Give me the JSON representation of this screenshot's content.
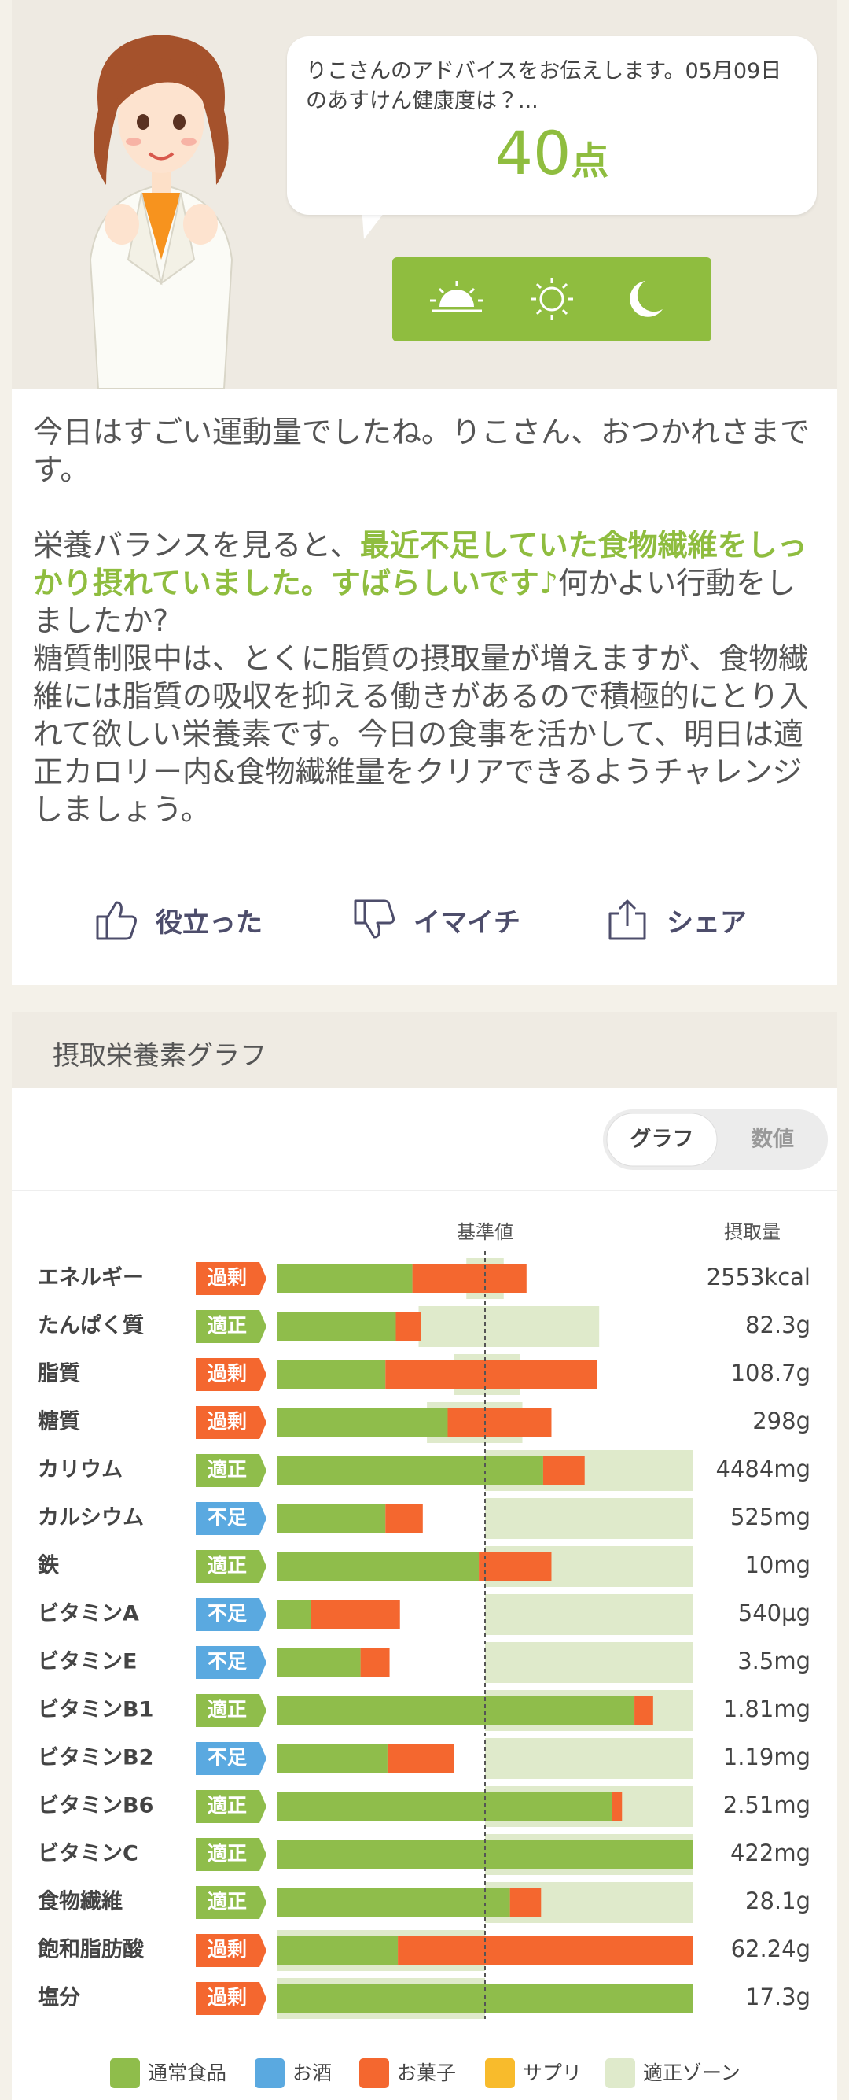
{
  "advice": {
    "bubble_text": "りこさんのアドバイスをお伝えします。05月09日のあすけん健康度は？...",
    "score": 40,
    "score_unit": "点"
  },
  "message": {
    "p1": "今日はすごい運動量でしたね。りこさん、おつかれさまです。",
    "p2": [
      "栄養バランスを見ると、",
      "最近不足していた食物繊維をしっかり摂れていました。すばらしいです♪",
      "何かよい行動をしましたか?"
    ],
    "p3": "糖質制限中は、とくに脂質の摂取量が増えますが、食物繊維には脂質の吸収を抑える働きがあるので積極的にとり入れて欲しい栄養素です。今日の食事を活かして、明日は適正カロリー内&食物繊維量をクリアできるようチャレンジしましょう。"
  },
  "actions": [
    "役立った",
    "イマイチ",
    "シェア"
  ],
  "nutrient_graph": {
    "title": "摂取栄養素グラフ",
    "tabs": [
      "グラフ",
      "数値"
    ],
    "selected_tab": 0,
    "reference_label": "基準値",
    "intake_label": "摂取量",
    "xlim": [
      0,
      200
    ],
    "reference": 100,
    "legend": [
      {
        "name": "通常食品",
        "color": "#8fbd4b"
      },
      {
        "name": "お酒",
        "color": "#5aa9e0"
      },
      {
        "name": "お菓子",
        "color": "#f4672f"
      },
      {
        "name": "サプリ",
        "color": "#f8bb2c"
      },
      {
        "name": "適正ゾーン",
        "color": "#dfeacb"
      }
    ],
    "nutrients": [
      {
        "name": "エネルギー",
        "status": "過剰",
        "status_color": "#f4672f",
        "normal": 65,
        "snack": 55,
        "zone": [
          91,
          109
        ],
        "intake": "2553kcal"
      },
      {
        "name": "たんぱく質",
        "status": "適正",
        "status_color": "#8fbd4b",
        "normal": 57,
        "snack": 12,
        "zone": [
          68,
          155
        ],
        "intake": "82.3g"
      },
      {
        "name": "脂質",
        "status": "過剰",
        "status_color": "#f4672f",
        "normal": 52,
        "snack": 102,
        "zone": [
          85,
          117
        ],
        "intake": "108.7g"
      },
      {
        "name": "糖質",
        "status": "過剰",
        "status_color": "#f4672f",
        "normal": 82,
        "snack": 50,
        "zone": [
          72,
          118
        ],
        "intake": "298g"
      },
      {
        "name": "カリウム",
        "status": "適正",
        "status_color": "#8fbd4b",
        "normal": 128,
        "snack": 20,
        "zone": [
          100,
          200
        ],
        "intake": "4484mg"
      },
      {
        "name": "カルシウム",
        "status": "不足",
        "status_color": "#5aa9e0",
        "normal": 52,
        "snack": 18,
        "zone": [
          100,
          200
        ],
        "intake": "525mg"
      },
      {
        "name": "鉄",
        "status": "適正",
        "status_color": "#8fbd4b",
        "normal": 97,
        "snack": 35,
        "zone": [
          100,
          200
        ],
        "intake": "10mg"
      },
      {
        "name": "ビタミンA",
        "status": "不足",
        "status_color": "#5aa9e0",
        "normal": 16,
        "snack": 43,
        "zone": [
          100,
          200
        ],
        "intake": "540µg"
      },
      {
        "name": "ビタミンE",
        "status": "不足",
        "status_color": "#5aa9e0",
        "normal": 40,
        "snack": 14,
        "zone": [
          100,
          200
        ],
        "intake": "3.5mg"
      },
      {
        "name": "ビタミンB1",
        "status": "適正",
        "status_color": "#8fbd4b",
        "normal": 172,
        "snack": 9,
        "zone": [
          100,
          200
        ],
        "intake": "1.81mg"
      },
      {
        "name": "ビタミンB2",
        "status": "不足",
        "status_color": "#5aa9e0",
        "normal": 53,
        "snack": 32,
        "zone": [
          100,
          200
        ],
        "intake": "1.19mg"
      },
      {
        "name": "ビタミンB6",
        "status": "適正",
        "status_color": "#8fbd4b",
        "normal": 161,
        "snack": 5,
        "zone": [
          100,
          200
        ],
        "intake": "2.51mg"
      },
      {
        "name": "ビタミンC",
        "status": "適正",
        "status_color": "#8fbd4b",
        "normal": 200,
        "snack": 0,
        "zone": [
          100,
          200
        ],
        "intake": "422mg"
      },
      {
        "name": "食物繊維",
        "status": "適正",
        "status_color": "#8fbd4b",
        "normal": 112,
        "snack": 15,
        "zone": [
          100,
          200
        ],
        "intake": "28.1g"
      },
      {
        "name": "飽和脂肪酸",
        "status": "過剰",
        "status_color": "#f4672f",
        "normal": 58,
        "snack": 142,
        "zone": [
          0,
          100
        ],
        "intake": "62.24g"
      },
      {
        "name": "塩分",
        "status": "過剰",
        "status_color": "#f4672f",
        "normal": 200,
        "snack": 0,
        "zone": [
          0,
          100
        ],
        "intake": "17.3g"
      }
    ]
  }
}
